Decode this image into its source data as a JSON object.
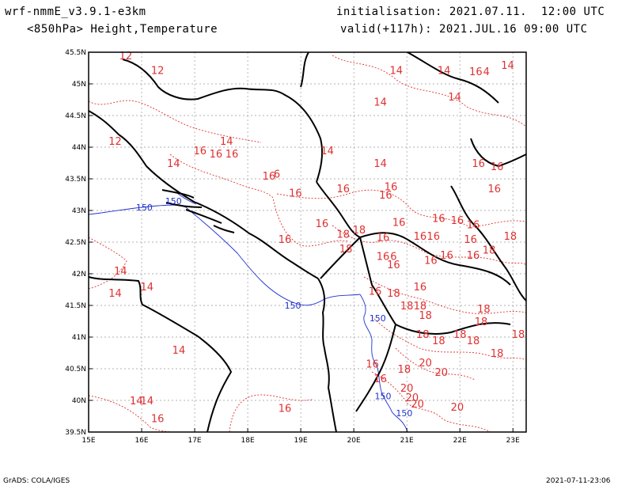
{
  "header": {
    "model": "wrf-nmmE_v3.9.1-e3km",
    "field": "<850hPa> Height,Temperature",
    "init": "initialisation: 2021.07.11.  12:00 UTC",
    "valid": "valid(+117h): 2021.JUL.16 09:00 UTC"
  },
  "footer": {
    "left": "GrADS: COLA/IGES",
    "right": "2021-07-11-23:06"
  },
  "colors": {
    "temperature_contour": "#e03030",
    "height_contour": "#2030d0",
    "coastline": "#000000",
    "grid": "#999999"
  },
  "map": {
    "lon_range": [
      15,
      23.25
    ],
    "lat_range": [
      39.5,
      45.5
    ],
    "lon_ticks": [
      "15E",
      "16E",
      "17E",
      "18E",
      "19E",
      "20E",
      "21E",
      "22E",
      "23E"
    ],
    "lat_ticks": [
      "39.5N",
      "40N",
      "40.5N",
      "41N",
      "41.5N",
      "42N",
      "42.5N",
      "43N",
      "43.5N",
      "44N",
      "44.5N",
      "45N",
      "45.5N"
    ],
    "grid": true
  },
  "temp_labels": [
    {
      "t": "12",
      "lon": 15.7,
      "lat": 45.45
    },
    {
      "t": "12",
      "lon": 16.3,
      "lat": 45.22
    },
    {
      "t": "12",
      "lon": 15.5,
      "lat": 44.1
    },
    {
      "t": "14",
      "lon": 16.6,
      "lat": 43.75
    },
    {
      "t": "14",
      "lon": 16.1,
      "lat": 41.8
    },
    {
      "t": "14",
      "lon": 15.6,
      "lat": 42.05
    },
    {
      "t": "14",
      "lon": 15.5,
      "lat": 41.7
    },
    {
      "t": "14",
      "lon": 16.7,
      "lat": 40.8
    },
    {
      "t": "14",
      "lon": 15.9,
      "lat": 40.0
    },
    {
      "t": "14",
      "lon": 16.1,
      "lat": 40.0
    },
    {
      "t": "16",
      "lon": 16.3,
      "lat": 39.72
    },
    {
      "t": "16",
      "lon": 18.7,
      "lat": 39.88
    },
    {
      "t": "14",
      "lon": 17.6,
      "lat": 44.1
    },
    {
      "t": "16",
      "lon": 17.1,
      "lat": 43.95
    },
    {
      "t": "16",
      "lon": 17.4,
      "lat": 43.9
    },
    {
      "t": "16",
      "lon": 17.7,
      "lat": 43.9
    },
    {
      "t": "14",
      "lon": 19.5,
      "lat": 43.95
    },
    {
      "t": "14",
      "lon": 20.5,
      "lat": 43.75
    },
    {
      "t": "14",
      "lon": 20.8,
      "lat": 45.22
    },
    {
      "t": "14",
      "lon": 20.5,
      "lat": 44.72
    },
    {
      "t": "14",
      "lon": 21.7,
      "lat": 45.22
    },
    {
      "t": "14",
      "lon": 21.9,
      "lat": 44.8
    },
    {
      "t": "16",
      "lon": 22.3,
      "lat": 45.2
    },
    {
      "t": "4",
      "lon": 22.5,
      "lat": 45.2
    },
    {
      "t": "14",
      "lon": 22.9,
      "lat": 45.3
    },
    {
      "t": "16",
      "lon": 18.4,
      "lat": 43.55
    },
    {
      "t": "6",
      "lon": 18.55,
      "lat": 43.58
    },
    {
      "t": "16",
      "lon": 18.9,
      "lat": 43.28
    },
    {
      "t": "16",
      "lon": 19.8,
      "lat": 43.35
    },
    {
      "t": "16",
      "lon": 20.7,
      "lat": 43.38
    },
    {
      "t": "16",
      "lon": 20.6,
      "lat": 43.25
    },
    {
      "t": "16",
      "lon": 22.35,
      "lat": 43.75
    },
    {
      "t": "16",
      "lon": 22.7,
      "lat": 43.7
    },
    {
      "t": "16",
      "lon": 22.65,
      "lat": 43.35
    },
    {
      "t": "16",
      "lon": 19.4,
      "lat": 42.8
    },
    {
      "t": "16",
      "lon": 18.7,
      "lat": 42.55
    },
    {
      "t": "18",
      "lon": 19.8,
      "lat": 42.63
    },
    {
      "t": "18",
      "lon": 20.1,
      "lat": 42.7
    },
    {
      "t": "18",
      "lon": 19.85,
      "lat": 42.4
    },
    {
      "t": "16",
      "lon": 20.55,
      "lat": 42.58
    },
    {
      "t": "16",
      "lon": 20.85,
      "lat": 42.82
    },
    {
      "t": "16",
      "lon": 21.25,
      "lat": 42.6
    },
    {
      "t": "16",
      "lon": 21.6,
      "lat": 42.88
    },
    {
      "t": "16",
      "lon": 21.95,
      "lat": 42.85
    },
    {
      "t": "16",
      "lon": 22.25,
      "lat": 42.78
    },
    {
      "t": "16",
      "lon": 21.5,
      "lat": 42.6
    },
    {
      "t": "16",
      "lon": 22.2,
      "lat": 42.55
    },
    {
      "t": "16",
      "lon": 20.55,
      "lat": 42.28
    },
    {
      "t": "6",
      "lon": 20.75,
      "lat": 42.28
    },
    {
      "t": "16",
      "lon": 21.45,
      "lat": 42.22
    },
    {
      "t": "16",
      "lon": 21.75,
      "lat": 42.3
    },
    {
      "t": "16",
      "lon": 22.25,
      "lat": 42.3
    },
    {
      "t": "18",
      "lon": 22.55,
      "lat": 42.38
    },
    {
      "t": "18",
      "lon": 22.95,
      "lat": 42.6
    },
    {
      "t": "16",
      "lon": 20.75,
      "lat": 42.15
    },
    {
      "t": "16",
      "lon": 20.4,
      "lat": 41.73
    },
    {
      "t": "16",
      "lon": 21.25,
      "lat": 41.8
    },
    {
      "t": "18",
      "lon": 20.75,
      "lat": 41.7
    },
    {
      "t": "18",
      "lon": 21.0,
      "lat": 41.5
    },
    {
      "t": "18",
      "lon": 21.25,
      "lat": 41.5
    },
    {
      "t": "18",
      "lon": 21.35,
      "lat": 41.35
    },
    {
      "t": "18",
      "lon": 22.45,
      "lat": 41.45
    },
    {
      "t": "18",
      "lon": 22.4,
      "lat": 41.25
    },
    {
      "t": "18",
      "lon": 21.3,
      "lat": 41.05
    },
    {
      "t": "18",
      "lon": 21.6,
      "lat": 40.95
    },
    {
      "t": "18",
      "lon": 22.0,
      "lat": 41.05
    },
    {
      "t": "18",
      "lon": 22.25,
      "lat": 40.95
    },
    {
      "t": "18",
      "lon": 22.7,
      "lat": 40.75
    },
    {
      "t": "18",
      "lon": 23.1,
      "lat": 41.05
    },
    {
      "t": "16",
      "lon": 20.35,
      "lat": 40.58
    },
    {
      "t": "16",
      "lon": 20.5,
      "lat": 40.35
    },
    {
      "t": "18",
      "lon": 20.95,
      "lat": 40.5
    },
    {
      "t": "20",
      "lon": 21.35,
      "lat": 40.6
    },
    {
      "t": "20",
      "lon": 21.65,
      "lat": 40.45
    },
    {
      "t": "20",
      "lon": 21.0,
      "lat": 40.2
    },
    {
      "t": "20",
      "lon": 21.1,
      "lat": 40.05
    },
    {
      "t": "20",
      "lon": 21.2,
      "lat": 39.95
    },
    {
      "t": "20",
      "lon": 21.95,
      "lat": 39.9
    }
  ],
  "height_labels": [
    {
      "t": "150",
      "lon": 16.6,
      "lat": 43.15
    },
    {
      "t": "150",
      "lon": 16.05,
      "lat": 43.05
    },
    {
      "t": "150",
      "lon": 18.85,
      "lat": 41.5
    },
    {
      "t": "150",
      "lon": 20.45,
      "lat": 41.3
    },
    {
      "t": "150",
      "lon": 20.55,
      "lat": 40.07
    },
    {
      "t": "150",
      "lon": 20.95,
      "lat": 39.8
    }
  ]
}
